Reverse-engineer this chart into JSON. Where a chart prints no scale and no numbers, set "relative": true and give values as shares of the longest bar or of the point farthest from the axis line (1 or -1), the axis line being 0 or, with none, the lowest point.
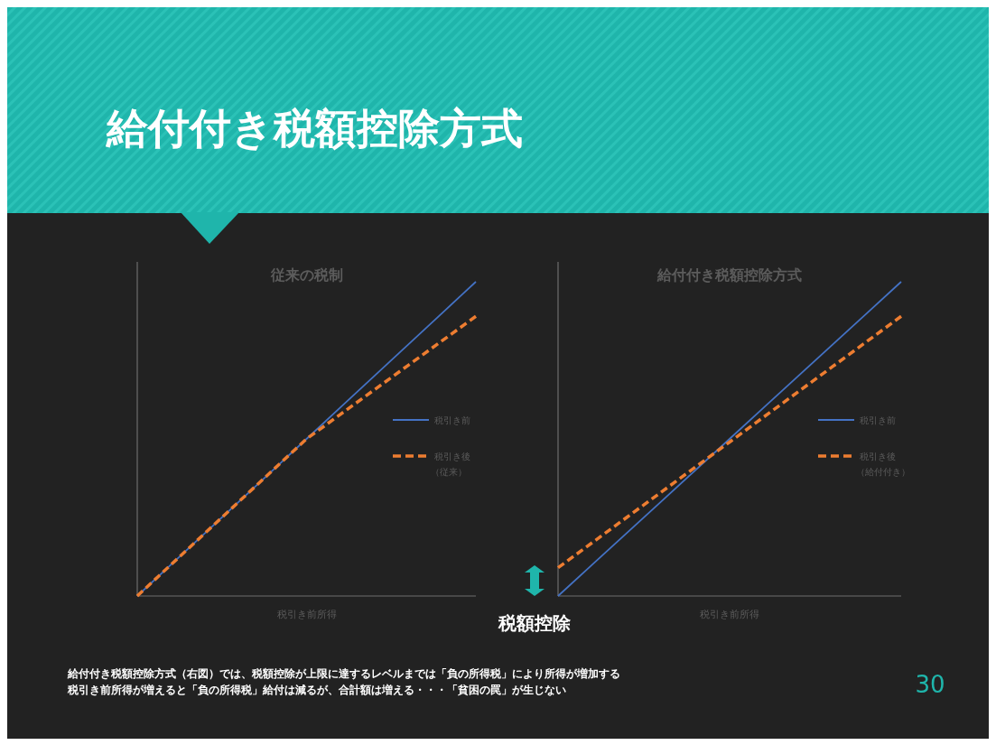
{
  "chart_data": [
    {
      "type": "other",
      "title": "給付付き税額控除方式",
      "annotations": [
        "給付付き税額控除方式（右図）では、税額控除が上限に達するレベルまでは「負の所得税」により所得が増加する",
        "税引き前所得が増えると「負の所得税」給付は減るが、合計額は増える・・・「貧困の罠」が生じない",
        "30"
      ]
    },
    {
      "type": "line",
      "title": "従来の税制",
      "xlabel": "税引き前所得",
      "relative": true,
      "legend": "right",
      "categories": [
        null,
        null,
        null,
        null,
        null,
        null,
        null,
        null,
        null,
        null,
        null
      ],
      "series": [
        {
          "name": "税引き前",
          "color": "#4472c4",
          "line_style": "solid",
          "values": [
            0,
            0.1,
            0.2,
            0.3,
            0.4,
            0.5,
            0.6,
            0.7,
            0.8,
            0.9,
            1
          ]
        },
        {
          "name": "税引き後（従来）",
          "color": "#ed7d31",
          "line_style": "dashed",
          "values": [
            0,
            0.1,
            0.2,
            0.3,
            0.4,
            0.5,
            0.578,
            0.656,
            0.734,
            0.812,
            0.89
          ]
        }
      ]
    },
    {
      "type": "line",
      "title": "給付付き税額控除方式",
      "xlabel": "税引き前所得",
      "relative": true,
      "legend": "right",
      "annotations": [
        "税額控除"
      ],
      "categories": [
        null,
        null,
        null,
        null,
        null,
        null,
        null,
        null,
        null,
        null,
        null
      ],
      "series": [
        {
          "name": "税引き前",
          "color": "#4472c4",
          "line_style": "solid",
          "values": [
            0,
            0.1,
            0.2,
            0.3,
            0.4,
            0.5,
            0.6,
            0.7,
            0.8,
            0.9,
            1
          ]
        },
        {
          "name": "税引き後（給付付き）",
          "color": "#ed7d31",
          "line_style": "dashed",
          "values": [
            0.09,
            0.17,
            0.25,
            0.33,
            0.41,
            0.49,
            0.57,
            0.65,
            0.73,
            0.81,
            0.89
          ]
        }
      ]
    }
  ]
}
